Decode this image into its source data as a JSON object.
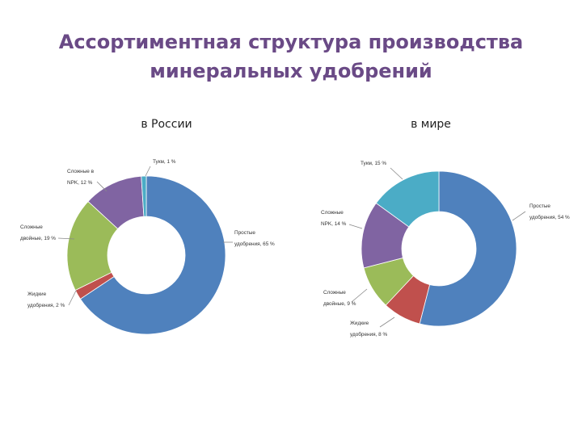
{
  "title_lines": [
    "Ассортиментная структура производства",
    "минеральных удобрений"
  ],
  "chart_data": [
    {
      "type": "pie",
      "donut": true,
      "subtitle": "в России",
      "slices": [
        {
          "label_lines": [
            "Простые",
            "удобрения, 65 %"
          ],
          "value": 65,
          "color": "#4f81bd"
        },
        {
          "label_lines": [
            "Жидкие",
            "удобрения, 2 %"
          ],
          "value": 2,
          "color": "#c0504d"
        },
        {
          "label_lines": [
            "Сложные",
            "двойные, 19 %"
          ],
          "value": 19,
          "color": "#9bbb59"
        },
        {
          "label_lines": [
            "Сложные в",
            "NPK, 12 %"
          ],
          "value": 12,
          "color": "#8064a2"
        },
        {
          "label_lines": [
            "Тукм, 1 %"
          ],
          "value": 1,
          "color": "#4bacc6"
        }
      ]
    },
    {
      "type": "pie",
      "donut": true,
      "subtitle": "в мире",
      "slices": [
        {
          "label_lines": [
            "Простые",
            "удобрения, 54 %"
          ],
          "value": 54,
          "color": "#4f81bd"
        },
        {
          "label_lines": [
            "Жидкие",
            "удобрения, 8 %"
          ],
          "value": 8,
          "color": "#c0504d"
        },
        {
          "label_lines": [
            "Сложные",
            "двойные, 9 %"
          ],
          "value": 9,
          "color": "#9bbb59"
        },
        {
          "label_lines": [
            "Сложные",
            "NPK, 14 %"
          ],
          "value": 14,
          "color": "#8064a2"
        },
        {
          "label_lines": [
            "Тукм, 15 %"
          ],
          "value": 15,
          "color": "#4bacc6"
        }
      ]
    }
  ]
}
